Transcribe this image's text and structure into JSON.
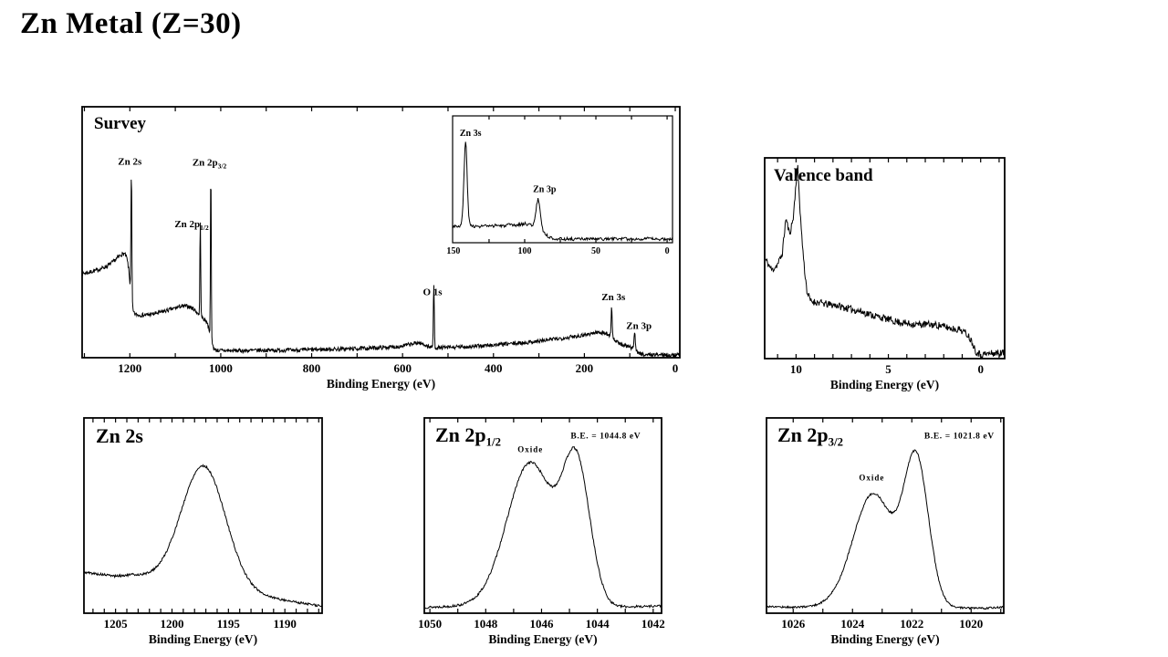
{
  "page_title": "Zn Metal (Z=30)",
  "colors": {
    "trace": "#000000",
    "frame": "#000000",
    "text": "#000000",
    "background": "#ffffff"
  },
  "chart_data": [
    {
      "id": "survey",
      "type": "line",
      "title_main": "Survey",
      "title_sub": "",
      "xlabel": "Binding Energy (eV)",
      "ylabel": "",
      "x_range": [
        1305,
        -10
      ],
      "tick_step": 100,
      "tick_labels": [
        [
          1200,
          "1200"
        ],
        [
          1000,
          "1000"
        ],
        [
          800,
          "800"
        ],
        [
          600,
          "600"
        ],
        [
          400,
          "400"
        ],
        [
          200,
          "200"
        ],
        [
          0,
          "0"
        ]
      ],
      "annotations": [
        {
          "text": "Zn 2s",
          "x": 1200,
          "rel": 0.77,
          "size": 11
        },
        {
          "text": "Zn 2p",
          "sub": "3/2",
          "x": 1025,
          "rel": 0.765,
          "size": 11
        },
        {
          "text": "Zn 2p",
          "sub": "1/2",
          "x": 1064,
          "rel": 0.52,
          "size": 11
        },
        {
          "text": "O 1s",
          "x": 534,
          "rel": 0.25,
          "size": 11
        },
        {
          "text": "Zn 3s",
          "x": 136,
          "rel": 0.23,
          "size": 11
        },
        {
          "text": "Zn 3p",
          "x": 80,
          "rel": 0.115,
          "size": 11
        }
      ],
      "model": {
        "samples": 1400,
        "noise": 0.008,
        "seed": 7,
        "bg": [
          [
            1305,
            0.335
          ],
          [
            1290,
            0.34
          ],
          [
            1270,
            0.35
          ],
          [
            1250,
            0.365
          ],
          [
            1235,
            0.385
          ],
          [
            1220,
            0.41
          ],
          [
            1212,
            0.415
          ],
          [
            1207,
            0.4
          ],
          [
            1203,
            0.36
          ],
          [
            1200,
            0.3
          ],
          [
            1197,
            0.22
          ],
          [
            1194,
            0.19
          ],
          [
            1190,
            0.175
          ],
          [
            1182,
            0.17
          ],
          [
            1165,
            0.17
          ],
          [
            1145,
            0.175
          ],
          [
            1125,
            0.185
          ],
          [
            1105,
            0.195
          ],
          [
            1088,
            0.205
          ],
          [
            1072,
            0.205
          ],
          [
            1060,
            0.195
          ],
          [
            1052,
            0.18
          ],
          [
            1045,
            0.165
          ],
          [
            1038,
            0.155
          ],
          [
            1031,
            0.145
          ],
          [
            1026,
            0.115
          ],
          [
            1021,
            0.07
          ],
          [
            1016,
            0.04
          ],
          [
            1011,
            0.03
          ],
          [
            995,
            0.028
          ],
          [
            950,
            0.028
          ],
          [
            900,
            0.03
          ],
          [
            850,
            0.03
          ],
          [
            800,
            0.032
          ],
          [
            750,
            0.034
          ],
          [
            700,
            0.036
          ],
          [
            650,
            0.04
          ],
          [
            610,
            0.044
          ],
          [
            585,
            0.052
          ],
          [
            565,
            0.06
          ],
          [
            552,
            0.052
          ],
          [
            542,
            0.044
          ],
          [
            530,
            0.04
          ],
          [
            510,
            0.04
          ],
          [
            480,
            0.042
          ],
          [
            450,
            0.044
          ],
          [
            420,
            0.048
          ],
          [
            390,
            0.052
          ],
          [
            360,
            0.056
          ],
          [
            330,
            0.06
          ],
          [
            300,
            0.066
          ],
          [
            270,
            0.073
          ],
          [
            240,
            0.08
          ],
          [
            210,
            0.088
          ],
          [
            185,
            0.096
          ],
          [
            168,
            0.102
          ],
          [
            155,
            0.098
          ],
          [
            147,
            0.092
          ],
          [
            138,
            0.08
          ],
          [
            128,
            0.062
          ],
          [
            118,
            0.052
          ],
          [
            108,
            0.046
          ],
          [
            98,
            0.04
          ],
          [
            90,
            0.035
          ],
          [
            84,
            0.025
          ],
          [
            78,
            0.016
          ],
          [
            70,
            0.013
          ],
          [
            50,
            0.012
          ],
          [
            25,
            0.012
          ],
          [
            0,
            0.011
          ],
          [
            -10,
            0.011
          ]
        ],
        "peaks": [
          {
            "name": "Zn 2s",
            "c": 1196.6,
            "h": 0.52,
            "w": 2.4
          },
          {
            "name": "Zn 2p1/2",
            "c": 1045.0,
            "h": 0.39,
            "w": 2.0
          },
          {
            "name": "Zn 2p3/2",
            "c": 1021.8,
            "h": 0.7,
            "w": 2.0
          },
          {
            "name": "O 1s",
            "c": 531.2,
            "h": 0.25,
            "w": 2.4
          },
          {
            "name": "Zn 3s",
            "c": 140.0,
            "h": 0.12,
            "w": 2.8
          },
          {
            "name": "Zn 3p",
            "c": 89.5,
            "h": 0.07,
            "w": 3.4
          }
        ]
      }
    },
    {
      "id": "survey_inset",
      "type": "line",
      "title_main": "",
      "title_sub": "",
      "xlabel": "",
      "ylabel": "",
      "x_range": [
        150.6,
        -3.8
      ],
      "tick_step": 25,
      "tick_len": 4,
      "frame": 1.2,
      "tick_font": 10,
      "tick_label_dy": 12,
      "tick_labels": [
        [
          150,
          "150"
        ],
        [
          100,
          "100"
        ],
        [
          50,
          "50"
        ],
        [
          0,
          "0"
        ]
      ],
      "annotations": [
        {
          "text": "Zn 3s",
          "x": 138,
          "rel": 0.84,
          "size": 10
        },
        {
          "text": "Zn 3p",
          "x": 86,
          "rel": 0.4,
          "size": 10
        }
      ],
      "model": {
        "samples": 340,
        "noise": 0.012,
        "seed": 3,
        "bg": [
          [
            151,
            0.135
          ],
          [
            147,
            0.13
          ],
          [
            144,
            0.135
          ],
          [
            137,
            0.135
          ],
          [
            133,
            0.125
          ],
          [
            128,
            0.135
          ],
          [
            124,
            0.125
          ],
          [
            120,
            0.14
          ],
          [
            116,
            0.13
          ],
          [
            112,
            0.14
          ],
          [
            107,
            0.135
          ],
          [
            103,
            0.145
          ],
          [
            100,
            0.15
          ],
          [
            97,
            0.145
          ],
          [
            94,
            0.135
          ],
          [
            91,
            0.125
          ],
          [
            88,
            0.1
          ],
          [
            85,
            0.06
          ],
          [
            82,
            0.04
          ],
          [
            79,
            0.033
          ],
          [
            75,
            0.03
          ],
          [
            65,
            0.028
          ],
          [
            55,
            0.03
          ],
          [
            45,
            0.028
          ],
          [
            35,
            0.032
          ],
          [
            25,
            0.028
          ],
          [
            15,
            0.032
          ],
          [
            5,
            0.028
          ],
          [
            -4,
            0.028
          ]
        ],
        "peaks": [
          {
            "name": "Zn 3s",
            "c": 141.5,
            "h": 0.66,
            "w": 2.6
          },
          {
            "name": "Zn 3p",
            "c": 90.5,
            "h": 0.22,
            "w": 3.4
          }
        ]
      }
    },
    {
      "id": "valence",
      "type": "line",
      "title_main": "Valence band",
      "title_sub": "",
      "xlabel": "Binding Energy (eV)",
      "ylabel": "",
      "x_range": [
        11.7,
        -1.3
      ],
      "tick_step": 1,
      "tick_labels": [
        [
          10,
          "10"
        ],
        [
          5,
          "5"
        ],
        [
          0,
          "0"
        ]
      ],
      "annotations": [],
      "model": {
        "samples": 420,
        "noise": 0.018,
        "seed": 11,
        "bg": [
          [
            11.7,
            0.5
          ],
          [
            11.3,
            0.44
          ],
          [
            11.0,
            0.47
          ],
          [
            10.75,
            0.52
          ],
          [
            10.55,
            0.7
          ],
          [
            10.35,
            0.62
          ],
          [
            10.15,
            0.7
          ],
          [
            10.0,
            0.88
          ],
          [
            9.9,
            0.95
          ],
          [
            9.82,
            0.8
          ],
          [
            9.7,
            0.62
          ],
          [
            9.55,
            0.45
          ],
          [
            9.4,
            0.33
          ],
          [
            9.2,
            0.285
          ],
          [
            8.8,
            0.28
          ],
          [
            8.3,
            0.27
          ],
          [
            7.8,
            0.265
          ],
          [
            7.2,
            0.25
          ],
          [
            6.5,
            0.235
          ],
          [
            5.8,
            0.215
          ],
          [
            5.2,
            0.2
          ],
          [
            4.6,
            0.185
          ],
          [
            4.0,
            0.175
          ],
          [
            3.4,
            0.17
          ],
          [
            2.8,
            0.17
          ],
          [
            2.2,
            0.165
          ],
          [
            1.6,
            0.15
          ],
          [
            1.1,
            0.145
          ],
          [
            0.7,
            0.12
          ],
          [
            0.45,
            0.08
          ],
          [
            0.25,
            0.035
          ],
          [
            0.0,
            0.02
          ],
          [
            -0.5,
            0.025
          ],
          [
            -1.3,
            0.03
          ]
        ],
        "peaks": []
      }
    },
    {
      "id": "zn2s",
      "type": "line",
      "title_main": "Zn 2s",
      "title_sub": "",
      "xlabel": "Binding Energy (eV)",
      "ylabel": "",
      "x_range": [
        1207.8,
        1186.7
      ],
      "tick_step": 1,
      "tick_labels": [
        [
          1205,
          "1205"
        ],
        [
          1200,
          "1200"
        ],
        [
          1195,
          "1195"
        ],
        [
          1190,
          "1190"
        ]
      ],
      "annotations": [],
      "model": {
        "samples": 380,
        "noise": 0.006,
        "seed": 5,
        "bg": [
          [
            1207.8,
            0.21
          ],
          [
            1206.5,
            0.2
          ],
          [
            1205,
            0.19
          ],
          [
            1203.5,
            0.195
          ],
          [
            1186.7,
            0.035
          ]
        ],
        "peaks": [
          {
            "name": "Zn 2s",
            "c": 1197.2,
            "h": 0.62,
            "w": 4.6
          }
        ]
      }
    },
    {
      "id": "zn2p12",
      "type": "line",
      "title_main": "Zn 2p",
      "title_sub": "1/2",
      "xlabel": "Binding Energy (eV)",
      "ylabel": "",
      "x_range": [
        1050.2,
        1041.7
      ],
      "tick_step": 1,
      "tick_labels": [
        [
          1050,
          "1050"
        ],
        [
          1048,
          "1048"
        ],
        [
          1046,
          "1046"
        ],
        [
          1044,
          "1044"
        ],
        [
          1042,
          "1042"
        ]
      ],
      "annotations": [
        {
          "text": "Oxide",
          "x": 1046.4,
          "rel": 0.825,
          "size": 9,
          "spacing": 1
        },
        {
          "text": "B.E. = 1044.8 eV",
          "x": 1043.7,
          "rel": 0.895,
          "size": 9.5,
          "spacing": 0.6
        }
      ],
      "model": {
        "samples": 380,
        "noise": 0.006,
        "seed": 13,
        "bg": [
          [
            1050.2,
            0.03
          ],
          [
            1049,
            0.035
          ],
          [
            1047.5,
            0.045
          ],
          [
            1043.5,
            0.03
          ],
          [
            1041.7,
            0.038
          ]
        ],
        "peaks": [
          {
            "name": "oxide",
            "c": 1046.4,
            "h": 0.73,
            "w": 1.95
          },
          {
            "name": "metal B.E. = 1044.8 eV",
            "c": 1044.75,
            "h": 0.7,
            "w": 1.15
          }
        ]
      }
    },
    {
      "id": "zn2p32",
      "type": "line",
      "title_main": "Zn 2p",
      "title_sub": "3/2",
      "xlabel": "Binding Energy (eV)",
      "ylabel": "",
      "x_range": [
        1026.9,
        1018.9
      ],
      "tick_step": 1,
      "tick_labels": [
        [
          1026,
          "1026"
        ],
        [
          1024,
          "1024"
        ],
        [
          1022,
          "1022"
        ],
        [
          1020,
          "1020"
        ]
      ],
      "annotations": [
        {
          "text": "Oxide",
          "x": 1023.35,
          "rel": 0.68,
          "size": 9,
          "spacing": 1
        },
        {
          "text": "B.E. = 1021.8 eV",
          "x": 1020.4,
          "rel": 0.895,
          "size": 9.5,
          "spacing": 0.6
        }
      ],
      "model": {
        "samples": 380,
        "noise": 0.005,
        "seed": 17,
        "bg": [
          [
            1026.9,
            0.035
          ],
          [
            1026,
            0.03
          ],
          [
            1024.8,
            0.035
          ],
          [
            1019.6,
            0.025
          ],
          [
            1018.9,
            0.032
          ]
        ],
        "peaks": [
          {
            "name": "oxide",
            "c": 1023.3,
            "h": 0.58,
            "w": 1.6
          },
          {
            "name": "metal B.E. = 1021.8 eV",
            "c": 1021.85,
            "h": 0.74,
            "w": 0.98
          }
        ]
      }
    }
  ]
}
